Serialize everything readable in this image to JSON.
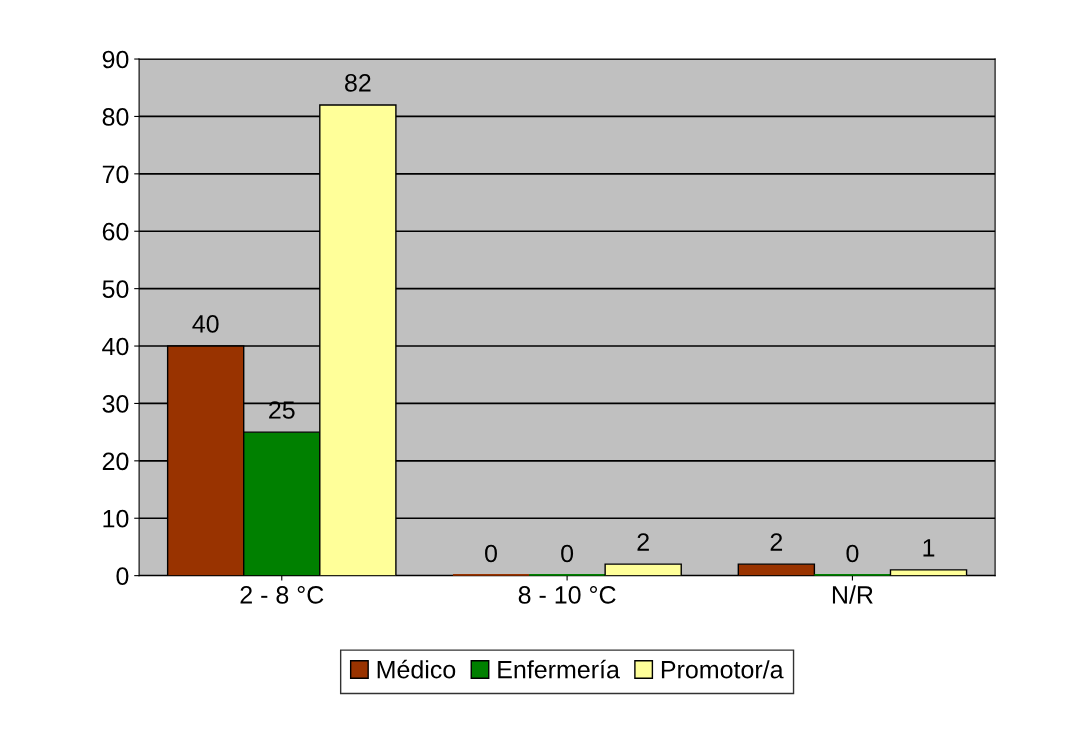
{
  "chart_data": {
    "type": "bar",
    "categories": [
      "2 - 8 °C",
      "8 - 10 °C",
      "N/R"
    ],
    "series": [
      {
        "name": "Médico",
        "color": "#993300",
        "values": [
          40,
          0,
          2
        ]
      },
      {
        "name": "Enfermería",
        "color": "#008000",
        "values": [
          25,
          0,
          0
        ]
      },
      {
        "name": "Promotor/a",
        "color": "#ffff99",
        "values": [
          82,
          2,
          1
        ]
      }
    ],
    "ylim": [
      0,
      90
    ],
    "yticks": [
      0,
      10,
      20,
      30,
      40,
      50,
      60,
      70,
      80,
      90
    ],
    "grid": "y",
    "legend": "bottom",
    "data_labels": true
  }
}
